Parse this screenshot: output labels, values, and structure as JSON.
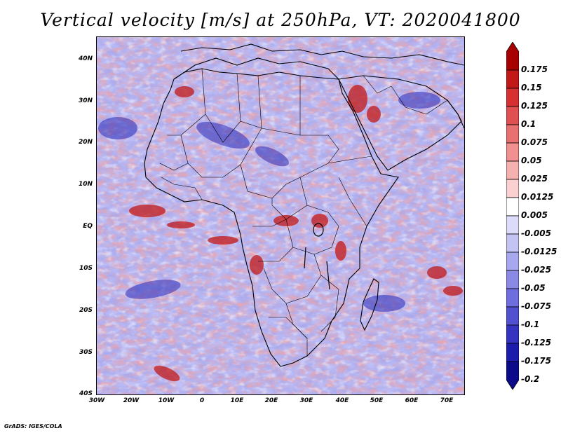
{
  "title": "Vertical velocity [m/s] at 250hPa, VT: 2020041800",
  "credit": "GrADS: IGES/COLA",
  "lat_labels": [
    "40N",
    "30N",
    "20N",
    "10N",
    "EQ",
    "10S",
    "20S",
    "30S",
    "40S"
  ],
  "lon_labels": [
    "30W",
    "20W",
    "10W",
    "0",
    "10E",
    "20E",
    "30E",
    "40E",
    "50E",
    "60E",
    "70E"
  ],
  "colorbar": {
    "labels": [
      "0.175",
      "0.15",
      "0.125",
      "0.1",
      "0.075",
      "0.05",
      "0.025",
      "0.0125",
      "0.005",
      "-0.005",
      "-0.0125",
      "-0.025",
      "-0.05",
      "-0.075",
      "-0.1",
      "-0.125",
      "-0.175",
      "-0.2"
    ],
    "colors": [
      "#a80000",
      "#c21818",
      "#d63030",
      "#e05050",
      "#e87070",
      "#f09090",
      "#f5b0b0",
      "#fad0d0",
      "#ffffff",
      "#dcdcfa",
      "#c4c4f4",
      "#a8a8ee",
      "#8a8ae6",
      "#6e6ede",
      "#5050d0",
      "#3434c0",
      "#1c1cac",
      "#0a0a8a"
    ]
  }
}
